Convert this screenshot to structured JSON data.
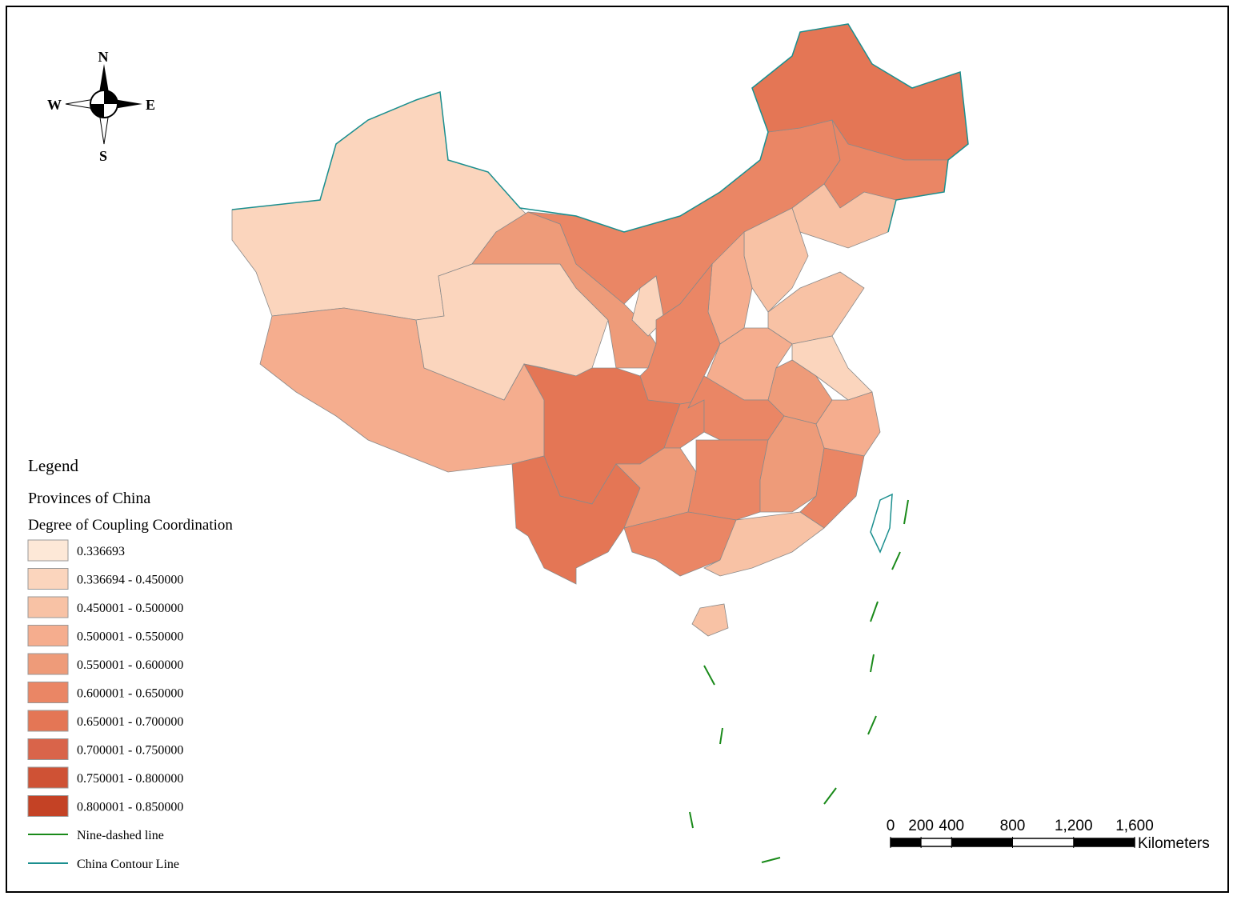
{
  "compass": {
    "north": "N",
    "south": "S",
    "west": "W",
    "east": "E"
  },
  "legend": {
    "title": "Legend",
    "layer": "Provinces of China",
    "field": "Degree of Coupling Coordination",
    "classes": [
      {
        "label": "0.336693",
        "color": "#fde8d7"
      },
      {
        "label": "0.336694 - 0.450000",
        "color": "#fbd5bd"
      },
      {
        "label": "0.450001 - 0.500000",
        "color": "#f8c2a5"
      },
      {
        "label": "0.500001 - 0.550000",
        "color": "#f5ad8e"
      },
      {
        "label": "0.550001 - 0.600000",
        "color": "#ee9b79"
      },
      {
        "label": "0.600001 - 0.650000",
        "color": "#ea8665"
      },
      {
        "label": "0.650001 - 0.700000",
        "color": "#e47655"
      },
      {
        "label": "0.700001 - 0.750000",
        "color": "#d9644a"
      },
      {
        "label": "0.750001 - 0.800000",
        "color": "#cf5235"
      },
      {
        "label": "0.800001 - 0.850000",
        "color": "#c44225"
      }
    ],
    "lines": [
      {
        "label": "Nine-dashed line",
        "color": "#1a8a1a"
      },
      {
        "label": "China Contour Line",
        "color": "#1b8f8f"
      }
    ]
  },
  "scale_bar": {
    "range": [
      0,
      1600
    ],
    "ticks": [
      0,
      200,
      400,
      800,
      {
        "value": 1200,
        "label": "1,200"
      },
      {
        "value": 1600,
        "label": "1,600"
      }
    ],
    "unit": "Kilometers"
  }
}
